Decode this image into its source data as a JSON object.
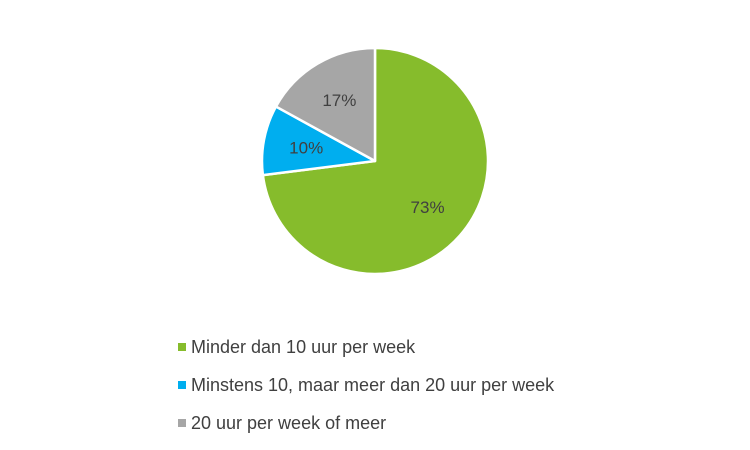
{
  "chart_data": {
    "type": "pie",
    "start_angle_deg": 0,
    "direction": "clockwise",
    "slices": [
      {
        "label": "Minder dan 10 uur per week",
        "value": 73,
        "value_label": "73%",
        "color": "#86bc2c"
      },
      {
        "label": "Minstens 10, maar meer dan 20 uur per week",
        "value": 10,
        "value_label": "10%",
        "color": "#00aeef"
      },
      {
        "label": "20 uur per week of meer",
        "value": 17,
        "value_label": "17%",
        "color": "#a6a6a6"
      }
    ],
    "legend_position": "bottom"
  }
}
